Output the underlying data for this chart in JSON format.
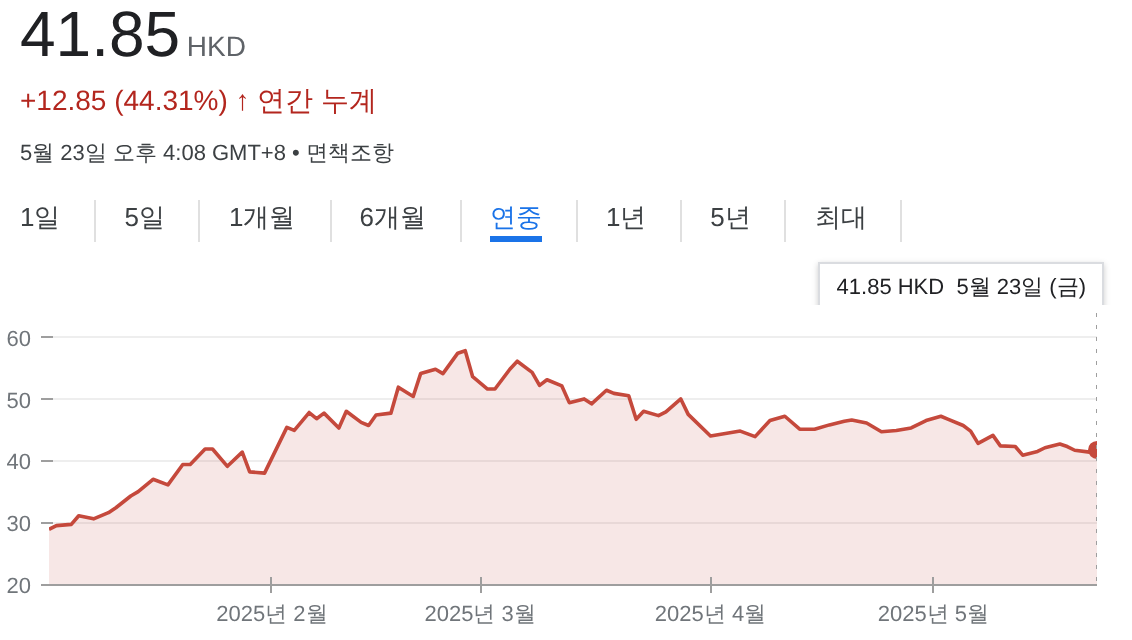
{
  "chart_data": {
    "type": "area",
    "title": "41.85",
    "annotations": [
      "HKD",
      "+12.85 (44.31%) ↑ 연간 누계",
      "5월 23일 오후 4:08 GMT+8 • 면책조항",
      "1일",
      "5일",
      "1개월",
      "6개월",
      "연중",
      "1년",
      "5년",
      "최대",
      "41.85 HKD  5월 23일 (금)"
    ],
    "x": [
      "2025-01-02",
      "2025-01-03",
      "2025-01-05",
      "2025-01-06",
      "2025-01-08",
      "2025-01-10",
      "2025-01-11",
      "2025-01-13",
      "2025-01-14",
      "2025-01-16",
      "2025-01-18",
      "2025-01-20",
      "2025-01-21",
      "2025-01-23",
      "2025-01-24",
      "2025-01-26",
      "2025-01-28",
      "2025-01-29",
      "2025-01-31",
      "2025-02-03",
      "2025-02-04",
      "2025-02-06",
      "2025-02-07",
      "2025-02-08",
      "2025-02-10",
      "2025-02-11",
      "2025-02-13",
      "2025-02-14",
      "2025-02-15",
      "2025-02-17",
      "2025-02-18",
      "2025-02-20",
      "2025-02-21",
      "2025-02-23",
      "2025-02-24",
      "2025-02-26",
      "2025-02-27",
      "2025-02-28",
      "2025-03-02",
      "2025-03-03",
      "2025-03-05",
      "2025-03-06",
      "2025-03-08",
      "2025-03-09",
      "2025-03-10",
      "2025-03-12",
      "2025-03-13",
      "2025-03-15",
      "2025-03-16",
      "2025-03-18",
      "2025-03-19",
      "2025-03-21",
      "2025-03-22",
      "2025-03-23",
      "2025-03-25",
      "2025-03-26",
      "2025-03-28",
      "2025-03-29",
      "2025-04-01",
      "2025-04-03",
      "2025-04-05",
      "2025-04-07",
      "2025-04-09",
      "2025-04-11",
      "2025-04-13",
      "2025-04-15",
      "2025-04-17",
      "2025-04-19",
      "2025-04-20",
      "2025-04-22",
      "2025-04-24",
      "2025-04-26",
      "2025-04-28",
      "2025-04-30",
      "2025-05-02",
      "2025-05-03",
      "2025-05-05",
      "2025-05-06",
      "2025-05-07",
      "2025-05-09",
      "2025-05-10",
      "2025-05-12",
      "2025-05-13",
      "2025-05-15",
      "2025-05-16",
      "2025-05-18",
      "2025-05-19",
      "2025-05-20",
      "2025-05-22",
      "2025-05-23"
    ],
    "series": [
      {
        "color": "#c5493c",
        "values": [
          29.0,
          29.6,
          29.8,
          31.2,
          30.7,
          31.7,
          32.5,
          34.4,
          35.1,
          37.1,
          36.2,
          39.5,
          39.5,
          42.0,
          42.0,
          39.2,
          41.5,
          38.3,
          38.1,
          45.5,
          45.0,
          47.9,
          46.9,
          47.8,
          45.4,
          48.1,
          46.3,
          45.8,
          47.5,
          47.8,
          52.0,
          50.5,
          54.2,
          54.9,
          54.2,
          57.5,
          57.9,
          53.7,
          51.7,
          51.7,
          54.9,
          56.2,
          54.4,
          52.3,
          53.2,
          52.2,
          49.5,
          50.1,
          49.3,
          51.5,
          51.0,
          50.6,
          46.8,
          48.1,
          47.4,
          48.0,
          50.1,
          47.6,
          44.1,
          44.5,
          44.9,
          44.0,
          46.6,
          47.3,
          45.2,
          45.2,
          45.9,
          46.5,
          46.7,
          46.2,
          44.8,
          45.0,
          45.4,
          46.6,
          47.3,
          46.8,
          45.8,
          44.9,
          42.9,
          44.2,
          42.5,
          42.4,
          41.0,
          41.6,
          42.2,
          42.8,
          42.4,
          41.8,
          41.5,
          41.85
        ]
      }
    ],
    "xlim": [
      "2025-01-02",
      "2025-05-23"
    ],
    "xticks": [
      {
        "value": "2025-02-01",
        "label": "2025년 2월"
      },
      {
        "value": "2025-03-01",
        "label": "2025년 3월"
      },
      {
        "value": "2025-04-01",
        "label": "2025년 4월"
      },
      {
        "value": "2025-05-01",
        "label": "2025년 5월"
      }
    ],
    "ylim": [
      20,
      64
    ],
    "yticks": [
      20,
      30,
      40,
      50,
      60
    ],
    "grid": "y",
    "ref_lines": [
      {
        "axis": "x",
        "value": "2025-05-23",
        "color": "#9e9e9e",
        "line_style": "dotted"
      }
    ]
  }
}
